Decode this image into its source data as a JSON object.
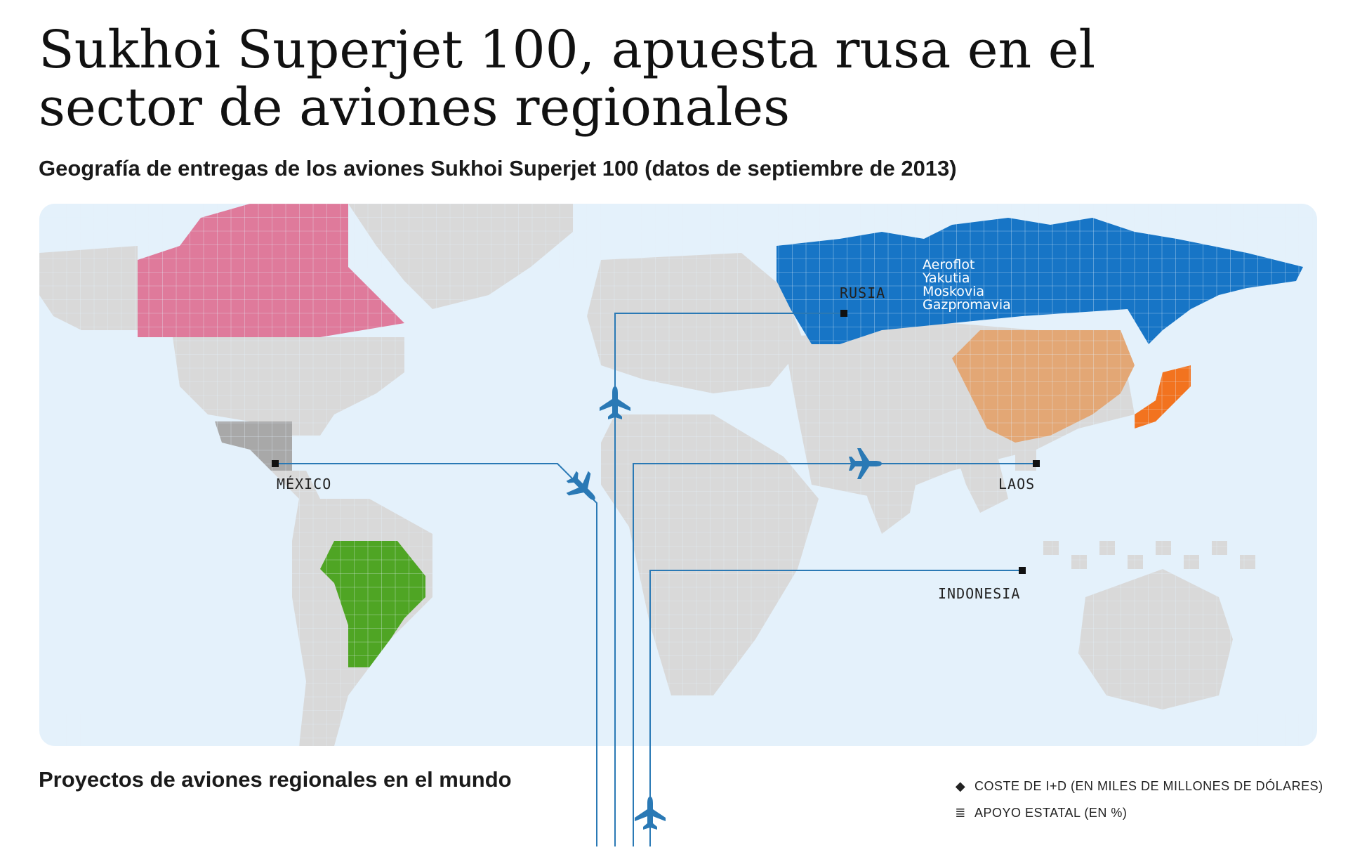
{
  "title": "Sukhoi Superjet 100, apuesta rusa en el sector de aviones regionales",
  "subtitle": "Geografía de entregas de los aviones Sukhoi Superjet 100 (datos de septiembre de 2013)",
  "map": {
    "colors": {
      "ocean": "#e4f1fb",
      "land": "#d9d9d9",
      "canada": "#df7a9b",
      "brazil": "#4fa524",
      "russia": "#1775c6",
      "china": "#e3a775",
      "japan": "#f2731f",
      "mexico": "#a8a8a8",
      "route": "#2a79b5",
      "plane": "#2a79b5"
    },
    "countries": {
      "russia": "RUSIA",
      "mexico": "MÉXICO",
      "laos": "LAOS",
      "indonesia": "INDONESIA"
    },
    "russia_airlines": [
      "Aeroflot",
      "Yakutia",
      "Moskovia",
      "Gazpromavia"
    ]
  },
  "section_title": "Proyectos de aviones regionales en el mundo",
  "legend": [
    {
      "icon": "diamond-icon",
      "symbol": "◆",
      "label": "COSTE DE I+D (EN MILES DE MILLONES DE DÓLARES)"
    },
    {
      "icon": "bars-icon",
      "symbol": "≣",
      "label": "APOYO ESTATAL (EN %)"
    }
  ]
}
